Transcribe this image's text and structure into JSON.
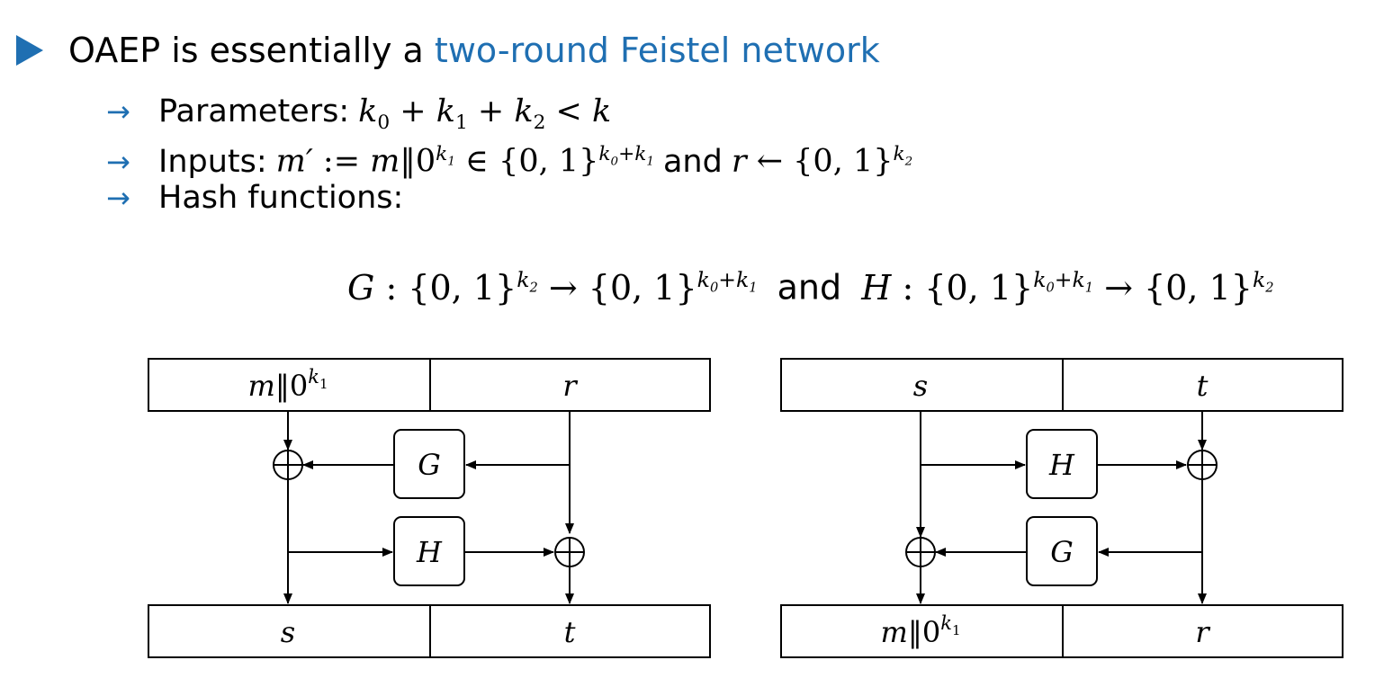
{
  "bullet": {
    "prefix": "OAEP is essentially a",
    "highlight": "two-round Feistel network"
  },
  "items": {
    "parameters": {
      "arrow": "→",
      "label": "Parameters:",
      "formula": "k0 + k1 + k2 < k"
    },
    "inputs": {
      "arrow": "→",
      "label": "Inputs:",
      "formula": "m′ := m‖0^k1 ∈ {0,1}^(k0+k1) and r ← {0,1}^k2",
      "connector": "and"
    },
    "hash": {
      "arrow": "→",
      "label": "Hash functions:"
    }
  },
  "display_formula": {
    "text": "G : {0,1}^k2 → {0,1}^(k0+k1) and H : {0,1}^(k0+k1) → {0,1}^k2",
    "connector": "and"
  },
  "diagram_left": {
    "top_left": "m‖0^k1",
    "top_right": "r",
    "box1": "G",
    "box2": "H",
    "bottom_left": "s",
    "bottom_right": "t"
  },
  "diagram_right": {
    "top_left": "s",
    "top_right": "t",
    "box1": "H",
    "box2": "G",
    "bottom_left": "m‖0^k1",
    "bottom_right": "r"
  },
  "colors": {
    "accent": "#1f6fb2",
    "ink": "#000000"
  },
  "icons": {
    "bullet": "triangle-bullet-icon",
    "xor": "xor-icon",
    "arrow": "arrow-right-icon"
  }
}
